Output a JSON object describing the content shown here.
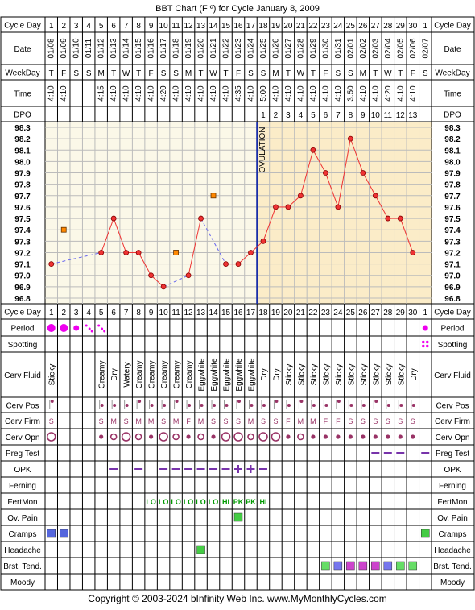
{
  "title": "BBT Chart (F º) for Cycle January 8, 2009",
  "copyright": "Copyright © 2003-2024 bInfinity Web Inc.    www.MyMonthlyCycles.com",
  "row_labels": {
    "cycle_day": "Cycle Day",
    "date": "Date",
    "weekday": "WeekDay",
    "time": "Time",
    "dpo": "DPO",
    "period": "Period",
    "spotting": "Spotting",
    "cerv_fluid": "Cerv Fluid",
    "cerv_pos": "Cerv Pos",
    "cerv_firm": "Cerv Firm",
    "cerv_opn": "Cerv Opn",
    "preg_test": "Preg Test",
    "opk": "OPK",
    "ferning": "Ferning",
    "fertmon": "FertMon",
    "ov_pain": "Ov. Pain",
    "cramps": "Cramps",
    "headache": "Headache",
    "brst_tend": "Brst. Tend.",
    "moody": "Moody"
  },
  "cycle_days": [
    "1",
    "2",
    "3",
    "4",
    "5",
    "6",
    "7",
    "8",
    "9",
    "10",
    "11",
    "12",
    "13",
    "14",
    "15",
    "16",
    "17",
    "18",
    "19",
    "20",
    "21",
    "22",
    "23",
    "24",
    "25",
    "26",
    "27",
    "28",
    "29",
    "30",
    "1"
  ],
  "dates": [
    "01/08",
    "01/09",
    "01/10",
    "01/11",
    "01/12",
    "01/13",
    "01/14",
    "01/15",
    "01/16",
    "01/17",
    "01/18",
    "01/19",
    "01/20",
    "01/21",
    "01/22",
    "01/23",
    "01/24",
    "01/25",
    "01/26",
    "01/27",
    "01/28",
    "01/29",
    "01/30",
    "01/31",
    "02/01",
    "02/02",
    "02/03",
    "02/04",
    "02/05",
    "02/06",
    "02/07"
  ],
  "weekdays": [
    "T",
    "F",
    "S",
    "S",
    "M",
    "T",
    "W",
    "T",
    "F",
    "S",
    "S",
    "M",
    "T",
    "W",
    "T",
    "F",
    "S",
    "S",
    "M",
    "T",
    "W",
    "T",
    "F",
    "S",
    "S",
    "M",
    "T",
    "W",
    "T",
    "F",
    "S"
  ],
  "times": [
    "4:10",
    "4:10",
    "",
    "",
    "4:15",
    "4:10",
    "4:10",
    "4:10",
    "4:10",
    "4:20",
    "4:10",
    "4:10",
    "4:10",
    "4:10",
    "4:10",
    "4:35",
    "4:10",
    "5:00",
    "4:10",
    "4:10",
    "4:10",
    "4:10",
    "4:10",
    "4:10",
    "3:50",
    "4:10",
    "4:10",
    "4:20",
    "4:10",
    "4:10",
    ""
  ],
  "dpo": [
    "",
    "",
    "",
    "",
    "",
    "",
    "",
    "",
    "",
    "",
    "",
    "",
    "",
    "",
    "",
    "",
    "",
    "1",
    "2",
    "3",
    "4",
    "5",
    "6",
    "7",
    "8",
    "9",
    "10",
    "11",
    "12",
    "13",
    ""
  ],
  "ovulation_label": "OVULATION",
  "ovulation_after_day_index": 16,
  "temp_labels": [
    "98.3",
    "98.2",
    "98.1",
    "98.0",
    "97.9",
    "97.8",
    "97.7",
    "97.6",
    "97.5",
    "97.4",
    "97.3",
    "97.2",
    "97.1",
    "97.0",
    "96.9",
    "96.8"
  ],
  "cerv_fluid": [
    "Sticky",
    "",
    "",
    "",
    "Creamy",
    "Dry",
    "Watery",
    "Creamy",
    "Creamy",
    "Creamy",
    "Creamy",
    "Creamy",
    "Eggwhite",
    "Eggwhite",
    "Eggwhite",
    "Eggwhite",
    "Eggwhite",
    "Dry",
    "Dry",
    "Sticky",
    "Sticky",
    "Sticky",
    "Sticky",
    "Sticky",
    "Sticky",
    "Sticky",
    "Sticky",
    "Sticky",
    "Sticky",
    "Dry",
    ""
  ],
  "cerv_firm": [
    "S",
    "",
    "",
    "",
    "S",
    "M",
    "S",
    "M",
    "M",
    "S",
    "M",
    "F",
    "M",
    "S",
    "S",
    "S",
    "M",
    "S",
    "S",
    "F",
    "M",
    "M",
    "F",
    "F",
    "S",
    "S",
    "S",
    "S",
    "S",
    "S",
    ""
  ],
  "cerv_opn": [
    "L",
    "",
    "",
    "",
    "s",
    "m",
    "L",
    "m",
    "s",
    "L",
    "m",
    "s",
    "m",
    "s",
    "L",
    "L",
    "m",
    "L",
    "L",
    "s",
    "m",
    "s",
    "s",
    "s",
    "s",
    "s",
    "s",
    "s",
    "s",
    "s",
    ""
  ],
  "cerv_pos": [
    "h",
    "",
    "",
    "",
    "m",
    "m",
    "m",
    "h",
    "m",
    "m",
    "h",
    "m",
    "m",
    "m",
    "m",
    "h",
    "m",
    "m",
    "h",
    "m",
    "h",
    "m",
    "m",
    "h",
    "m",
    "m",
    "h",
    "m",
    "m",
    "m",
    ""
  ],
  "period": [
    "heavy",
    "heavy",
    "medium",
    "light",
    "light",
    "",
    "",
    "",
    "",
    "",
    "",
    "",
    "",
    "",
    "",
    "",
    "",
    "",
    "",
    "",
    "",
    "",
    "",
    "",
    "",
    "",
    "",
    "",
    "",
    "",
    "medium"
  ],
  "spotting_days": [
    30
  ],
  "preg_test_days": [
    26,
    27,
    28,
    30
  ],
  "opk": [
    "",
    "",
    "",
    "",
    "",
    "N",
    "",
    "N",
    "",
    "N",
    "N",
    "N",
    "N",
    "N",
    "N",
    "P",
    "P",
    "N",
    "",
    "",
    "",
    "",
    "",
    "",
    "",
    "",
    "",
    "",
    "",
    "",
    ""
  ],
  "fertmon": [
    "",
    "",
    "",
    "",
    "",
    "",
    "",
    "",
    "LO",
    "LO",
    "LO",
    "LO",
    "LO",
    "LO",
    "HI",
    "PK",
    "PK",
    "HI",
    "",
    "",
    "",
    "",
    "",
    "",
    "",
    "",
    "",
    "",
    "",
    "",
    ""
  ],
  "ov_pain_days": [
    15
  ],
  "cramps_days": [
    0,
    1,
    30
  ],
  "headache_days": [
    12
  ],
  "brst_tend": [
    {
      "day": 22,
      "color": "#66dd66"
    },
    {
      "day": 23,
      "color": "#7777ee"
    },
    {
      "day": 24,
      "color": "#cc44cc"
    },
    {
      "day": 25,
      "color": "#cc44cc"
    },
    {
      "day": 26,
      "color": "#cc44cc"
    },
    {
      "day": 27,
      "color": "#7777ee"
    },
    {
      "day": 28,
      "color": "#66dd66"
    },
    {
      "day": 29,
      "color": "#66dd66"
    }
  ],
  "chart_data": {
    "type": "line",
    "title": "BBT Chart (F º) for Cycle January 8, 2009",
    "x": [
      "1",
      "2",
      "3",
      "4",
      "5",
      "6",
      "7",
      "8",
      "9",
      "10",
      "11",
      "12",
      "13",
      "14",
      "15",
      "16",
      "17",
      "18",
      "19",
      "20",
      "21",
      "22",
      "23",
      "24",
      "25",
      "26",
      "27",
      "28",
      "29",
      "30",
      "1"
    ],
    "ylim": [
      96.8,
      98.3
    ],
    "series": [
      {
        "values": [
          97.1,
          null,
          null,
          null,
          97.2,
          97.5,
          97.2,
          97.2,
          97.0,
          96.9,
          null,
          97.0,
          97.5,
          null,
          97.1,
          97.1,
          97.2,
          97.3,
          97.6,
          97.6,
          97.7,
          98.1,
          97.9,
          97.6,
          98.2,
          97.9,
          97.7,
          97.5,
          97.5,
          97.2,
          null
        ]
      }
    ],
    "discarded_points": [
      {
        "day": "2",
        "value": 97.4
      },
      {
        "day": "11",
        "value": 97.2
      },
      {
        "day": "14",
        "value": 97.7
      }
    ],
    "ovulation_day": "17",
    "colors": {
      "line": "#ee3333",
      "point": "#ee3333",
      "discarded": "#ff8800",
      "dashed": "#6666ee",
      "ovulation": "#1a2ea8",
      "pre_bg": "#fbf8e8",
      "post_bg": "#fbecc8"
    }
  }
}
